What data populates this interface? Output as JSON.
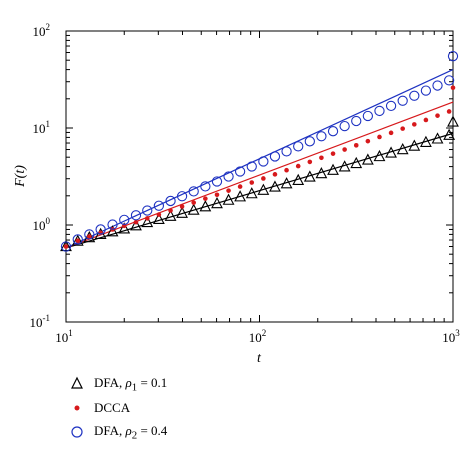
{
  "chart_data": {
    "type": "scatter",
    "xlabel": "t",
    "ylabel": "F(t)",
    "xscale": "log",
    "yscale": "log",
    "xlim": [
      10,
      1000
    ],
    "ylim": [
      0.1,
      100
    ],
    "x_ticks": [
      10,
      100,
      1000
    ],
    "y_ticks": [
      0.1,
      1,
      10,
      100
    ],
    "x_tick_labels": [
      {
        "base": "10",
        "exp": "1"
      },
      {
        "base": "10",
        "exp": "2"
      },
      {
        "base": "10",
        "exp": "3"
      }
    ],
    "y_tick_labels": [
      {
        "base": "10",
        "exp": "-1"
      },
      {
        "base": "10",
        "exp": "0"
      },
      {
        "base": "10",
        "exp": "1"
      },
      {
        "base": "10",
        "exp": "2"
      }
    ],
    "grid": false,
    "legend_position": "below",
    "series": [
      {
        "name": "DFA, ρ1 = 0.1",
        "legend_parts": {
          "pre": "DFA, ",
          "sym": "ρ",
          "sub": "1",
          "post": " = 0.1"
        },
        "marker": "triangle",
        "color": "#000000",
        "points": [
          [
            10,
            0.6
          ],
          [
            11.5,
            0.68
          ],
          [
            13.2,
            0.74
          ],
          [
            15.1,
            0.8
          ],
          [
            17.4,
            0.85
          ],
          [
            20,
            0.91
          ],
          [
            23,
            0.98
          ],
          [
            26.3,
            1.06
          ],
          [
            30.2,
            1.14
          ],
          [
            34.7,
            1.23
          ],
          [
            39.8,
            1.32
          ],
          [
            45.7,
            1.42
          ],
          [
            52.5,
            1.54
          ],
          [
            60.3,
            1.66
          ],
          [
            69.2,
            1.8
          ],
          [
            79.4,
            1.95
          ],
          [
            91.2,
            2.1
          ],
          [
            104.7,
            2.28
          ],
          [
            120.2,
            2.46
          ],
          [
            138,
            2.66
          ],
          [
            158.5,
            2.88
          ],
          [
            182,
            3.12
          ],
          [
            208.9,
            3.38
          ],
          [
            239.9,
            3.66
          ],
          [
            275.4,
            3.97
          ],
          [
            316.2,
            4.3
          ],
          [
            363.1,
            4.67
          ],
          [
            416.9,
            5.07
          ],
          [
            478.6,
            5.51
          ],
          [
            549.5,
            5.98
          ],
          [
            631,
            6.5
          ],
          [
            724.4,
            7.1
          ],
          [
            831.8,
            7.7
          ],
          [
            954.9,
            8.4
          ],
          [
            1000,
            11.5
          ]
        ],
        "fit": [
          [
            10,
            0.58
          ],
          [
            1000,
            8.8
          ]
        ]
      },
      {
        "name": "DCCA",
        "marker": "dot",
        "color": "#d7191c",
        "points": [
          [
            10,
            0.6
          ],
          [
            11.5,
            0.69
          ],
          [
            13.2,
            0.76
          ],
          [
            15.1,
            0.83
          ],
          [
            17.4,
            0.9
          ],
          [
            20,
            0.98
          ],
          [
            23,
            1.07
          ],
          [
            26.3,
            1.17
          ],
          [
            30.2,
            1.28
          ],
          [
            34.7,
            1.41
          ],
          [
            39.8,
            1.55
          ],
          [
            45.7,
            1.7
          ],
          [
            52.5,
            1.87
          ],
          [
            60.3,
            2.05
          ],
          [
            69.2,
            2.26
          ],
          [
            79.4,
            2.49
          ],
          [
            91.2,
            2.74
          ],
          [
            104.7,
            3.02
          ],
          [
            120.2,
            3.33
          ],
          [
            138,
            3.67
          ],
          [
            158.5,
            4.05
          ],
          [
            182,
            4.47
          ],
          [
            208.9,
            4.93
          ],
          [
            239.9,
            5.44
          ],
          [
            275.4,
            6
          ],
          [
            316.2,
            6.63
          ],
          [
            363.1,
            7.32
          ],
          [
            416.9,
            8.08
          ],
          [
            478.6,
            8.92
          ],
          [
            549.5,
            9.85
          ],
          [
            631,
            10.9
          ],
          [
            724.4,
            12.1
          ],
          [
            831.8,
            13.4
          ],
          [
            954.9,
            14.8
          ],
          [
            1000,
            26
          ]
        ],
        "fit": [
          [
            10,
            0.58
          ],
          [
            1000,
            18.5
          ]
        ]
      },
      {
        "name": "DFA, ρ2 = 0.4",
        "legend_parts": {
          "pre": "DFA, ",
          "sym": "ρ",
          "sub": "2",
          "post": " = 0.4"
        },
        "marker": "circle",
        "color": "#1f33c2",
        "points": [
          [
            10,
            0.6
          ],
          [
            11.5,
            0.71
          ],
          [
            13.2,
            0.8
          ],
          [
            15.1,
            0.9
          ],
          [
            17.4,
            1.01
          ],
          [
            20,
            1.13
          ],
          [
            23,
            1.26
          ],
          [
            26.3,
            1.41
          ],
          [
            30.2,
            1.58
          ],
          [
            34.7,
            1.77
          ],
          [
            39.8,
            1.98
          ],
          [
            45.7,
            2.22
          ],
          [
            52.5,
            2.5
          ],
          [
            60.3,
            2.81
          ],
          [
            69.2,
            3.16
          ],
          [
            79.4,
            3.56
          ],
          [
            91.2,
            4.01
          ],
          [
            104.7,
            4.52
          ],
          [
            120.2,
            5.09
          ],
          [
            138,
            5.74
          ],
          [
            158.5,
            6.47
          ],
          [
            182,
            7.29
          ],
          [
            208.9,
            8.22
          ],
          [
            239.9,
            9.27
          ],
          [
            275.4,
            10.46
          ],
          [
            316.2,
            11.8
          ],
          [
            363.1,
            13.3
          ],
          [
            416.9,
            15
          ],
          [
            478.6,
            16.9
          ],
          [
            549.5,
            19.1
          ],
          [
            631,
            21.5
          ],
          [
            724.4,
            24.3
          ],
          [
            831.8,
            27.4
          ],
          [
            954.9,
            31
          ],
          [
            1000,
            55
          ]
        ],
        "fit": [
          [
            10,
            0.58
          ],
          [
            1000,
            40
          ]
        ]
      }
    ]
  }
}
